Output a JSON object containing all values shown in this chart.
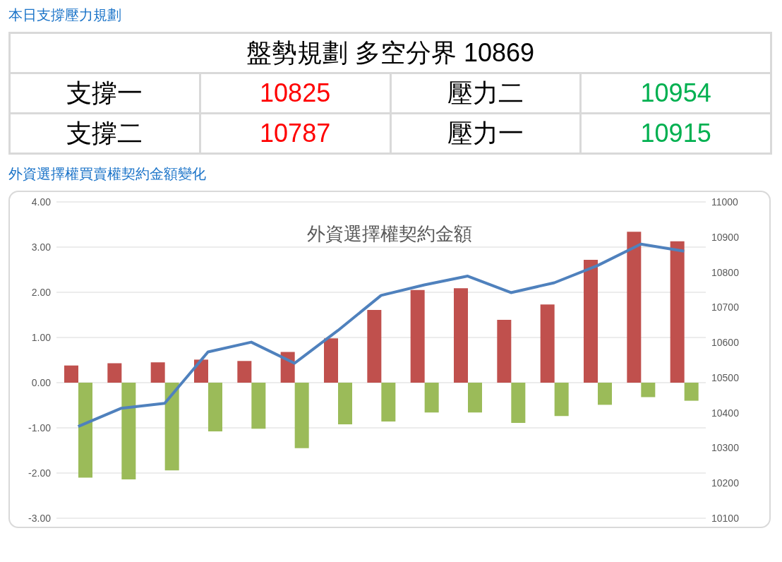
{
  "chart_data": [
    {
      "type": "other",
      "title": "本日支撐壓力規劃",
      "annotations": [
        "盤勢規劃 多空分界 10869",
        "支撐一",
        "10825",
        "壓力二",
        "10954",
        "支撐二",
        "10787",
        "壓力一",
        "10915"
      ]
    },
    {
      "type": "bar",
      "title": "外資選擇權買賣權契約金額變化",
      "subtitle": "外資選擇權契約金額",
      "categories": [
        null,
        null,
        null,
        null,
        null,
        null,
        null,
        null,
        null,
        null,
        null,
        null,
        null,
        null,
        null
      ],
      "series": [
        {
          "type": "bar",
          "color": "#c0504d",
          "values": [
            0.38,
            0.43,
            0.45,
            0.51,
            0.48,
            0.68,
            0.98,
            1.61,
            2.05,
            2.09,
            1.39,
            1.73,
            2.72,
            3.34,
            3.13
          ]
        },
        {
          "type": "bar",
          "color": "#9bbb59",
          "values": [
            -2.1,
            -2.14,
            -1.94,
            -1.08,
            -1.02,
            -1.45,
            -0.92,
            -0.86,
            -0.66,
            -0.66,
            -0.89,
            -0.74,
            -0.49,
            -0.32,
            -0.4
          ]
        },
        {
          "type": "line",
          "axis": "y2",
          "color": "#4f81bd",
          "values": [
            10361,
            10413,
            10427,
            10573,
            10601,
            10541,
            10634,
            10734,
            10764,
            10789,
            10742,
            10770,
            10819,
            10880,
            10860
          ]
        }
      ],
      "ylim": [
        -3,
        4
      ],
      "yticks": [
        {
          "value": -3,
          "label": "-3.00"
        },
        {
          "value": -2,
          "label": "-2.00"
        },
        {
          "value": -1,
          "label": "-1.00"
        },
        {
          "value": 0,
          "label": "0.00"
        },
        {
          "value": 1,
          "label": "1.00"
        },
        {
          "value": 2,
          "label": "2.00"
        },
        {
          "value": 3,
          "label": "3.00"
        },
        {
          "value": 4,
          "label": "4.00"
        }
      ],
      "y2lim": [
        10100,
        11000
      ],
      "y2ticks": [
        10100,
        10200,
        10300,
        10400,
        10500,
        10600,
        10700,
        10800,
        10900,
        11000
      ],
      "grid": "y",
      "legend": false,
      "marker": "none",
      "line_style": "solid"
    }
  ]
}
